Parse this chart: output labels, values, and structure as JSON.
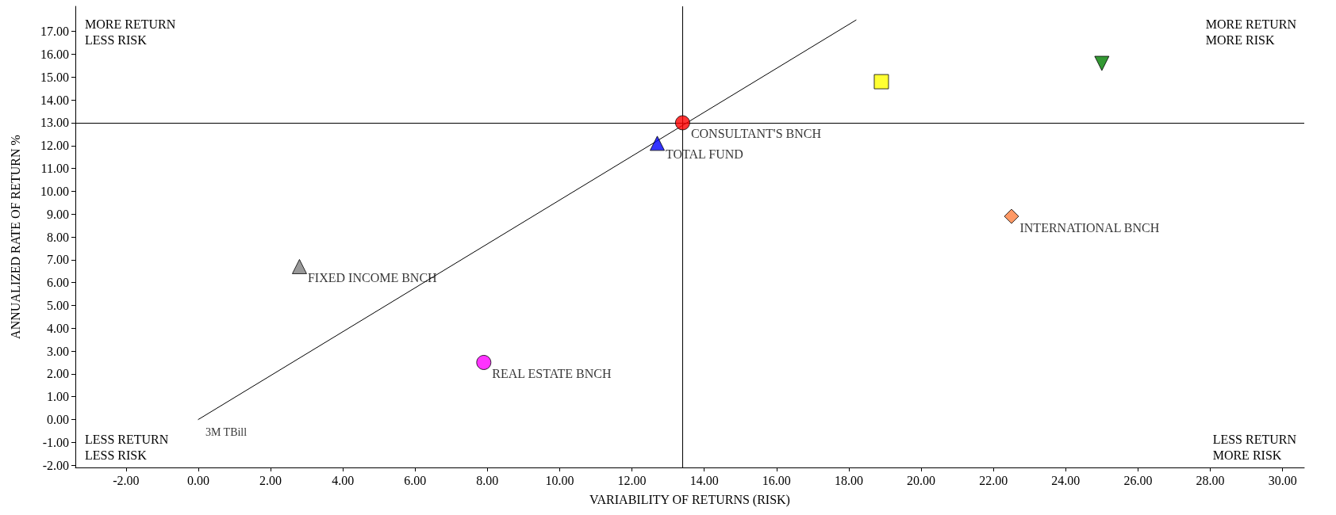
{
  "chart_data": {
    "type": "scatter",
    "xlabel": "VARIABILITY OF RETURNS (RISK)",
    "ylabel": "ANNUALIZED RATE OF RETURN %",
    "xlim": [
      -3.4,
      30.6
    ],
    "ylim": [
      -2.1,
      18.1
    ],
    "xticks": [
      {
        "value": -2,
        "label": "-2.00"
      },
      {
        "value": 0,
        "label": "0.00"
      },
      {
        "value": 2,
        "label": "2.00"
      },
      {
        "value": 4,
        "label": "4.00"
      },
      {
        "value": 6,
        "label": "6.00"
      },
      {
        "value": 8,
        "label": "8.00"
      },
      {
        "value": 10,
        "label": "10.00"
      },
      {
        "value": 12,
        "label": "12.00"
      },
      {
        "value": 14,
        "label": "14.00"
      },
      {
        "value": 16,
        "label": "16.00"
      },
      {
        "value": 18,
        "label": "18.00"
      },
      {
        "value": 20,
        "label": "20.00"
      },
      {
        "value": 22,
        "label": "22.00"
      },
      {
        "value": 24,
        "label": "24.00"
      },
      {
        "value": 26,
        "label": "26.00"
      },
      {
        "value": 28,
        "label": "28.00"
      },
      {
        "value": 30,
        "label": "30.00"
      }
    ],
    "yticks": [
      {
        "value": -2,
        "label": "-2.00"
      },
      {
        "value": -1,
        "label": "-1.00"
      },
      {
        "value": 0,
        "label": "0.00"
      },
      {
        "value": 1,
        "label": "1.00"
      },
      {
        "value": 2,
        "label": "2.00"
      },
      {
        "value": 3,
        "label": "3.00"
      },
      {
        "value": 4,
        "label": "4.00"
      },
      {
        "value": 5,
        "label": "5.00"
      },
      {
        "value": 6,
        "label": "6.00"
      },
      {
        "value": 7,
        "label": "7.00"
      },
      {
        "value": 8,
        "label": "8.00"
      },
      {
        "value": 9,
        "label": "9.00"
      },
      {
        "value": 10,
        "label": "10.00"
      },
      {
        "value": 11,
        "label": "11.00"
      },
      {
        "value": 12,
        "label": "12.00"
      },
      {
        "value": 13,
        "label": "13.00"
      },
      {
        "value": 14,
        "label": "14.00"
      },
      {
        "value": 15,
        "label": "15.00"
      },
      {
        "value": 16,
        "label": "16.00"
      },
      {
        "value": 17,
        "label": "17.00"
      }
    ],
    "grid": false,
    "legend": false,
    "series": [
      {
        "type": "line",
        "color": "#000000",
        "marker": "none",
        "line_style": "solid",
        "x": [
          0,
          18.2
        ],
        "values": [
          0,
          17.5
        ]
      },
      {
        "name": "CONSULTANT'S BNCH",
        "color": "#ff0000",
        "marker": "circle",
        "x": [
          13.4
        ],
        "values": [
          13.0
        ]
      },
      {
        "name": "TOTAL FUND",
        "color": "#0000ff",
        "marker": "triangle",
        "x": [
          12.7
        ],
        "values": [
          12.1
        ]
      },
      {
        "color": "#ffff00",
        "marker": "square",
        "x": [
          18.9
        ],
        "values": [
          14.8
        ]
      },
      {
        "color": "#008000",
        "marker": "triangle-down",
        "x": [
          25.0
        ],
        "values": [
          15.6
        ]
      },
      {
        "name": "INTERNATIONAL BNCH",
        "color": "#ff7f3f",
        "marker": "diamond",
        "x": [
          22.5
        ],
        "values": [
          8.9
        ]
      },
      {
        "name": "FIXED INCOME BNCH",
        "color": "#808080",
        "marker": "triangle",
        "x": [
          2.8
        ],
        "values": [
          6.7
        ]
      },
      {
        "name": "REAL ESTATE BNCH",
        "color": "#ff00ff",
        "marker": "circle",
        "x": [
          7.9
        ],
        "values": [
          2.5
        ]
      }
    ],
    "ref_lines": [
      {
        "axis": "x",
        "value": 13.4,
        "color": "#000000"
      },
      {
        "axis": "y",
        "value": 13.0,
        "color": "#000000"
      }
    ],
    "annotations": [
      "MORE RETURN\nLESS RISK",
      "MORE RETURN\nMORE RISK",
      "LESS RETURN\nLESS RISK",
      "LESS RETURN\nMORE RISK",
      {
        "text": "3M TBill",
        "x": 0,
        "y": 0
      }
    ]
  }
}
